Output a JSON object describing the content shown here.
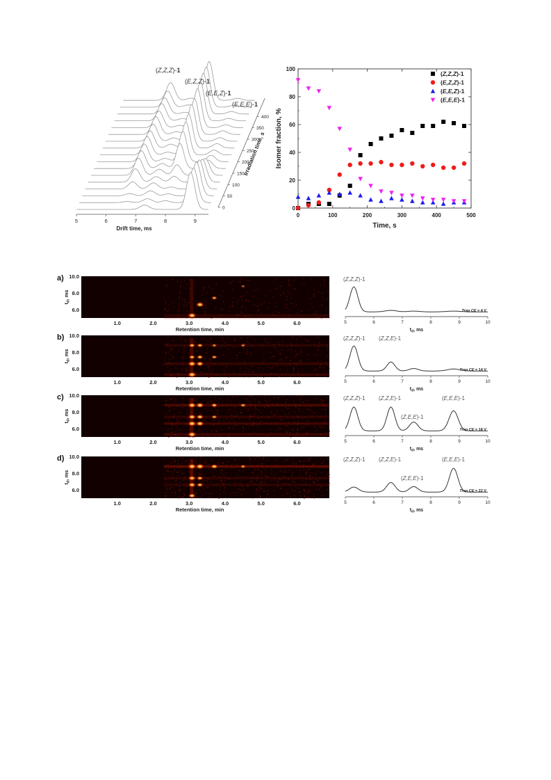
{
  "chart_data": [
    {
      "type": "waterfall",
      "xlabel": "Drift time, ms",
      "ylabel": "Irradiation time, s",
      "x_ticks": [
        "5",
        "6",
        "7",
        "8",
        "9"
      ],
      "z_ticks": [
        "0",
        "50",
        "100",
        "150",
        "200",
        "250",
        "300",
        "350",
        "400"
      ],
      "peak_labels": [
        {
          "pre": "(",
          "ital": "Z,Z,Z",
          "post": ")-",
          "bold": "1"
        },
        {
          "pre": "(",
          "ital": "E,Z,Z",
          "post": ")-",
          "bold": "1"
        },
        {
          "pre": "(",
          "ital": "E,E,Z",
          "post": ")-",
          "bold": "1"
        },
        {
          "pre": "(",
          "ital": "E,E,E",
          "post": ")-",
          "bold": "1"
        }
      ],
      "peak_positions_ms": [
        7.9,
        6.6,
        7.3,
        8.85
      ],
      "irradiation_times_s": [
        0,
        30,
        60,
        90,
        120,
        150,
        180,
        210,
        240,
        270,
        300,
        330,
        360,
        390,
        420,
        450,
        480
      ]
    },
    {
      "type": "scatter",
      "xlabel": "Time, s",
      "ylabel": "Isomer fraction, %",
      "xlim": [
        0,
        500
      ],
      "ylim": [
        0,
        100
      ],
      "x_ticks": [
        0,
        100,
        200,
        300,
        400,
        500
      ],
      "y_ticks": [
        0,
        20,
        40,
        60,
        80,
        100
      ],
      "legend_position": "top-right",
      "x": [
        0,
        30,
        60,
        90,
        120,
        150,
        180,
        210,
        240,
        270,
        300,
        330,
        360,
        390,
        420,
        450,
        480
      ],
      "series": [
        {
          "name": "(Z,Z,Z)-1",
          "ital": "Z,Z,Z",
          "marker": "square",
          "color": "#000000",
          "values": [
            0,
            3,
            3,
            3,
            9,
            16,
            38,
            46,
            50,
            52,
            56,
            54,
            59,
            59,
            62,
            61,
            59
          ]
        },
        {
          "name": "(E,Z,Z)-1",
          "ital": "E,Z,Z",
          "marker": "circle",
          "color": "#ee1c1c",
          "values": [
            0,
            2,
            4,
            13,
            24,
            31,
            32,
            32,
            33,
            31,
            31,
            32,
            30,
            31,
            29,
            29,
            32
          ]
        },
        {
          "name": "(E,E,Z)-1",
          "ital": "E,E,Z",
          "marker": "triangle-up",
          "color": "#1d1dee",
          "values": [
            8,
            7,
            9,
            11,
            10,
            11,
            9,
            6,
            5,
            7,
            6,
            5,
            4,
            4,
            3,
            4,
            4
          ]
        },
        {
          "name": "(E,E,E)-1",
          "ital": "E,E,E",
          "marker": "triangle-down",
          "color": "#ee22ee",
          "values": [
            92,
            86,
            84,
            72,
            57,
            42,
            21,
            16,
            12,
            11,
            9,
            9,
            7,
            6,
            6,
            5,
            5
          ]
        }
      ]
    },
    {
      "type": "heatmap",
      "panels": [
        {
          "letter": "a)",
          "xlabel": "Retention time, min",
          "ylabel": "td, ms",
          "x_ticks": [
            "1.0",
            "2.0",
            "3.0",
            "4.0",
            "5.0",
            "6.0"
          ],
          "y_ticks": [
            "10.0",
            "8.0",
            "6.0"
          ],
          "spots": [
            {
              "rt": 3.08,
              "td": 5.3,
              "i": 1.0
            },
            {
              "rt": 3.3,
              "td": 6.6,
              "i": 0.9
            },
            {
              "rt": 3.7,
              "td": 7.4,
              "i": 0.5
            },
            {
              "rt": 4.5,
              "td": 8.8,
              "i": 0.25
            }
          ],
          "streaks": [
            {
              "td": 5.3,
              "i": 0.3
            },
            {
              "td": 5.0,
              "i": 0.2
            }
          ],
          "trace": {
            "xlabel": "td, ms",
            "x_ticks": [
              "5",
              "6",
              "7",
              "8",
              "9",
              "10"
            ],
            "trap_label": "Trap CE",
            "trap_value": " = 4 V",
            "peaks": [
              {
                "td": 5.3,
                "h": 1.0,
                "w": 0.14
              },
              {
                "td": 6.6,
                "h": 0.06,
                "w": 0.2
              },
              {
                "td": 7.4,
                "h": 0.03,
                "w": 0.2
              },
              {
                "td": 8.8,
                "h": 0.03,
                "w": 0.25
              }
            ],
            "labels": [
              {
                "pre": "(",
                "ital": "Z,Z,Z",
                "post": ")-1",
                "row": 0
              }
            ]
          }
        },
        {
          "letter": "b)",
          "xlabel": "Retention time, min",
          "ylabel": "td, ms",
          "x_ticks": [
            "1.0",
            "2.0",
            "3.0",
            "4.0",
            "5.0",
            "6.0"
          ],
          "y_ticks": [
            "10.0",
            "8.0",
            "6.0"
          ],
          "spots": [
            {
              "rt": 3.08,
              "td": 5.3,
              "i": 1.0
            },
            {
              "rt": 3.08,
              "td": 6.6,
              "i": 0.95
            },
            {
              "rt": 3.3,
              "td": 6.6,
              "i": 0.8
            },
            {
              "rt": 3.3,
              "td": 7.4,
              "i": 0.6
            },
            {
              "rt": 3.08,
              "td": 7.4,
              "i": 0.6
            },
            {
              "rt": 3.3,
              "td": 8.8,
              "i": 0.55
            },
            {
              "rt": 3.7,
              "td": 7.4,
              "i": 0.5
            },
            {
              "rt": 3.7,
              "td": 8.8,
              "i": 0.4
            },
            {
              "rt": 4.5,
              "td": 8.8,
              "i": 0.35
            },
            {
              "rt": 3.08,
              "td": 8.8,
              "i": 0.6
            }
          ],
          "streaks": [
            {
              "td": 5.3,
              "i": 0.4
            },
            {
              "td": 6.6,
              "i": 0.35
            },
            {
              "td": 8.8,
              "i": 0.25
            }
          ],
          "trace": {
            "xlabel": "td, ms",
            "x_ticks": [
              "5",
              "6",
              "7",
              "8",
              "9",
              "10"
            ],
            "trap_label": "Trap CE",
            "trap_value": " = 14 V",
            "peaks": [
              {
                "td": 5.3,
                "h": 1.0,
                "w": 0.14
              },
              {
                "td": 6.6,
                "h": 0.36,
                "w": 0.14
              },
              {
                "td": 7.4,
                "h": 0.1,
                "w": 0.16
              },
              {
                "td": 8.8,
                "h": 0.08,
                "w": 0.22
              }
            ],
            "labels": [
              {
                "pre": "(",
                "ital": "Z,Z,Z",
                "post": ")-1",
                "row": 0
              },
              {
                "pre": "(",
                "ital": "Z,Z,E",
                "post": ")-1",
                "row": 0
              }
            ]
          }
        },
        {
          "letter": "c)",
          "xlabel": "Retention time, min",
          "ylabel": "td, ms",
          "x_ticks": [
            "1.0",
            "2.0",
            "3.0",
            "4.0",
            "5.0",
            "6.0"
          ],
          "y_ticks": [
            "10.0",
            "8.0",
            "6.0"
          ],
          "spots": [
            {
              "rt": 3.08,
              "td": 5.3,
              "i": 1.0
            },
            {
              "rt": 3.08,
              "td": 6.6,
              "i": 1.0
            },
            {
              "rt": 3.3,
              "td": 6.6,
              "i": 0.9
            },
            {
              "rt": 3.08,
              "td": 7.4,
              "i": 0.85
            },
            {
              "rt": 3.3,
              "td": 7.4,
              "i": 0.75
            },
            {
              "rt": 3.08,
              "td": 8.8,
              "i": 0.95
            },
            {
              "rt": 3.3,
              "td": 8.8,
              "i": 0.9
            },
            {
              "rt": 3.7,
              "td": 8.8,
              "i": 0.6
            },
            {
              "rt": 3.7,
              "td": 7.4,
              "i": 0.5
            },
            {
              "rt": 4.5,
              "td": 8.8,
              "i": 0.5
            }
          ],
          "streaks": [
            {
              "td": 5.3,
              "i": 0.45
            },
            {
              "td": 6.6,
              "i": 0.45
            },
            {
              "td": 7.4,
              "i": 0.3
            },
            {
              "td": 8.8,
              "i": 0.55
            }
          ],
          "trace": {
            "xlabel": "td, ms",
            "x_ticks": [
              "5",
              "6",
              "7",
              "8",
              "9",
              "10"
            ],
            "trap_label": "Trap CE",
            "trap_value": " = 18 V",
            "peaks": [
              {
                "td": 5.3,
                "h": 0.95,
                "w": 0.14
              },
              {
                "td": 6.6,
                "h": 0.95,
                "w": 0.14
              },
              {
                "td": 7.4,
                "h": 0.35,
                "w": 0.15
              },
              {
                "td": 8.8,
                "h": 0.8,
                "w": 0.16
              }
            ],
            "labels": [
              {
                "pre": "(",
                "ital": "Z,Z,Z",
                "post": ")-1",
                "row": 0
              },
              {
                "pre": "(",
                "ital": "Z,Z,E",
                "post": ")-1",
                "row": 0
              },
              {
                "pre": "(",
                "ital": "Z,E,E",
                "post": ")-1",
                "row": 1
              },
              {
                "pre": "(",
                "ital": "E,E,E",
                "post": ")-1",
                "row": 0
              }
            ]
          }
        },
        {
          "letter": "d)",
          "xlabel": "Retention time, min",
          "ylabel": "td, ms",
          "x_ticks": [
            "1.0",
            "2.0",
            "3.0",
            "4.0",
            "5.0",
            "6.0"
          ],
          "y_ticks": [
            "10.0",
            "8.0",
            "6.0"
          ],
          "spots": [
            {
              "rt": 3.08,
              "td": 5.3,
              "i": 0.75
            },
            {
              "rt": 3.08,
              "td": 6.6,
              "i": 0.8
            },
            {
              "rt": 3.08,
              "td": 7.4,
              "i": 0.8
            },
            {
              "rt": 3.08,
              "td": 8.8,
              "i": 1.0
            },
            {
              "rt": 3.3,
              "td": 8.8,
              "i": 1.0
            },
            {
              "rt": 3.3,
              "td": 7.4,
              "i": 0.6
            },
            {
              "rt": 3.3,
              "td": 6.6,
              "i": 0.6
            },
            {
              "rt": 3.7,
              "td": 8.8,
              "i": 0.75
            },
            {
              "rt": 4.5,
              "td": 8.8,
              "i": 0.45
            }
          ],
          "streaks": [
            {
              "td": 8.8,
              "i": 0.75
            },
            {
              "td": 7.4,
              "i": 0.3
            },
            {
              "td": 6.6,
              "i": 0.25
            }
          ],
          "trace": {
            "xlabel": "td, ms",
            "x_ticks": [
              "5",
              "6",
              "7",
              "8",
              "9",
              "10"
            ],
            "trap_label": "Trap CE",
            "trap_value": " = 22 V",
            "peaks": [
              {
                "td": 5.3,
                "h": 0.2,
                "w": 0.16
              },
              {
                "td": 6.6,
                "h": 0.38,
                "w": 0.15
              },
              {
                "td": 7.4,
                "h": 0.22,
                "w": 0.15
              },
              {
                "td": 8.8,
                "h": 0.95,
                "w": 0.15
              }
            ],
            "labels": [
              {
                "pre": "(",
                "ital": "Z,Z,Z",
                "post": ")-1",
                "row": 0
              },
              {
                "pre": "(",
                "ital": "Z,Z,E",
                "post": ")-1",
                "row": 0
              },
              {
                "pre": "(",
                "ital": "Z,E,E",
                "post": ")-1",
                "row": 1
              },
              {
                "pre": "(",
                "ital": "E,E,E",
                "post": ")-1",
                "row": 0
              }
            ]
          }
        }
      ]
    }
  ]
}
